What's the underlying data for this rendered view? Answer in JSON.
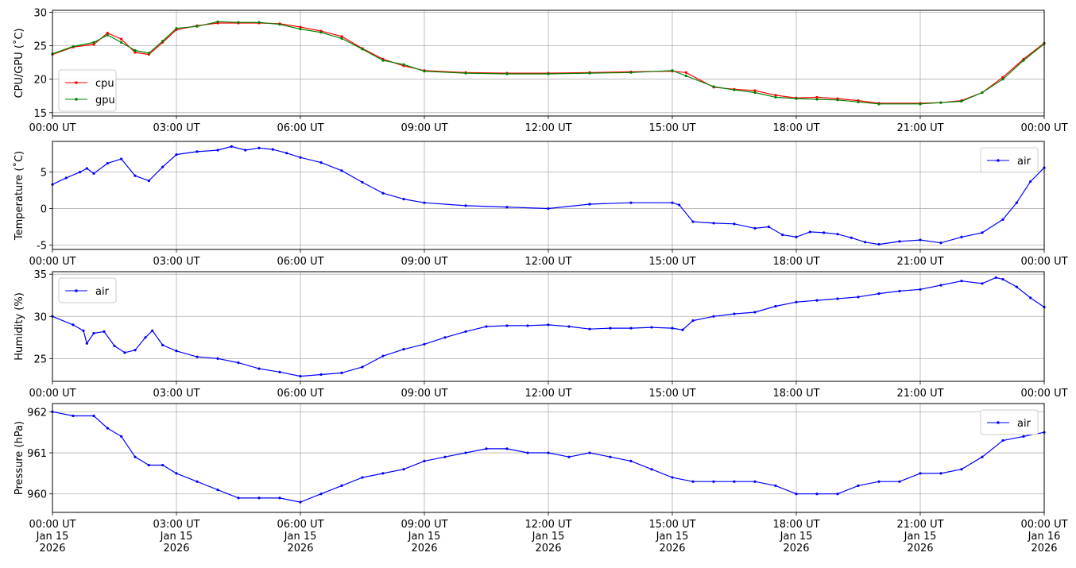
{
  "chart_data": [
    {
      "type": "line",
      "ylabel": "CPU/GPU (˚C)",
      "ylim": [
        14.5,
        30.3
      ],
      "yticks": [
        15,
        20,
        25,
        30
      ],
      "xlim": [
        "2026-01-15 00:00",
        "2026-01-16 00:00"
      ],
      "xtick_labels": [
        "00:00 UT",
        "03:00 UT",
        "06:00 UT",
        "09:00 UT",
        "12:00 UT",
        "15:00 UT",
        "18:00 UT",
        "21:00 UT",
        "00:00 UT"
      ],
      "grid": true,
      "legend": "lower-left",
      "series": [
        {
          "name": "cpu",
          "color": "#ff0000",
          "x": [
            "00:00",
            "00:30",
            "01:00",
            "01:20",
            "01:40",
            "02:00",
            "02:20",
            "02:40",
            "03:00",
            "03:30",
            "04:00",
            "04:30",
            "05:00",
            "05:30",
            "06:00",
            "06:30",
            "07:00",
            "07:30",
            "08:00",
            "08:30",
            "09:00",
            "10:00",
            "11:00",
            "12:00",
            "13:00",
            "14:00",
            "15:00",
            "15:20",
            "16:00",
            "16:30",
            "17:00",
            "17:30",
            "18:00",
            "18:30",
            "19:00",
            "19:30",
            "20:00",
            "21:00",
            "21:30",
            "22:00",
            "22:30",
            "23:00",
            "23:30",
            "24:00"
          ],
          "y": [
            23.7,
            24.8,
            25.2,
            26.9,
            26.0,
            24.0,
            23.7,
            25.5,
            27.4,
            28.0,
            28.4,
            28.4,
            28.4,
            28.3,
            27.8,
            27.2,
            26.4,
            24.6,
            23.0,
            22.0,
            21.3,
            21.0,
            20.9,
            20.9,
            21.0,
            21.1,
            21.2,
            21.0,
            18.8,
            18.5,
            18.3,
            17.6,
            17.2,
            17.3,
            17.1,
            16.8,
            16.4,
            16.4,
            16.5,
            16.8,
            18.0,
            20.3,
            23.0,
            25.4
          ]
        },
        {
          "name": "gpu",
          "color": "#008000",
          "x": [
            "00:00",
            "00:30",
            "01:00",
            "01:20",
            "01:40",
            "02:00",
            "02:20",
            "02:40",
            "03:00",
            "03:30",
            "04:00",
            "04:30",
            "05:00",
            "05:30",
            "06:00",
            "06:30",
            "07:00",
            "07:30",
            "08:00",
            "08:30",
            "09:00",
            "10:00",
            "11:00",
            "12:00",
            "13:00",
            "14:00",
            "15:00",
            "15:20",
            "16:00",
            "16:30",
            "17:00",
            "17:30",
            "18:00",
            "18:30",
            "19:00",
            "19:30",
            "20:00",
            "21:00",
            "21:30",
            "22:00",
            "22:30",
            "23:00",
            "23:30",
            "24:00"
          ],
          "y": [
            23.8,
            24.9,
            25.5,
            26.6,
            25.5,
            24.3,
            23.9,
            25.7,
            27.6,
            27.9,
            28.6,
            28.5,
            28.5,
            28.2,
            27.5,
            27.0,
            26.1,
            24.5,
            22.8,
            22.2,
            21.2,
            20.9,
            20.8,
            20.8,
            20.9,
            21.0,
            21.3,
            20.5,
            18.9,
            18.4,
            18.0,
            17.3,
            17.1,
            17.0,
            16.9,
            16.6,
            16.3,
            16.3,
            16.5,
            16.7,
            18.0,
            20.0,
            22.8,
            25.3
          ]
        }
      ]
    },
    {
      "type": "line",
      "ylabel": "Temperature (˚C)",
      "ylim": [
        -5.6,
        9.2
      ],
      "yticks": [
        -5,
        0,
        5
      ],
      "xlim": [
        "2026-01-15 00:00",
        "2026-01-16 00:00"
      ],
      "xtick_labels": [
        "00:00 UT",
        "03:00 UT",
        "06:00 UT",
        "09:00 UT",
        "12:00 UT",
        "15:00 UT",
        "18:00 UT",
        "21:00 UT",
        "00:00 UT"
      ],
      "grid": true,
      "legend": "upper-right",
      "series": [
        {
          "name": "air",
          "color": "#0000ff",
          "x": [
            "00:00",
            "00:20",
            "00:40",
            "00:50",
            "01:00",
            "01:20",
            "01:40",
            "02:00",
            "02:20",
            "02:40",
            "03:00",
            "03:30",
            "04:00",
            "04:20",
            "04:40",
            "05:00",
            "05:20",
            "05:40",
            "06:00",
            "06:30",
            "07:00",
            "07:30",
            "08:00",
            "08:30",
            "09:00",
            "10:00",
            "11:00",
            "12:00",
            "13:00",
            "14:00",
            "15:00",
            "15:10",
            "15:30",
            "16:00",
            "16:30",
            "17:00",
            "17:20",
            "17:40",
            "18:00",
            "18:20",
            "18:40",
            "19:00",
            "19:20",
            "19:40",
            "20:00",
            "20:30",
            "21:00",
            "21:30",
            "22:00",
            "22:30",
            "23:00",
            "23:20",
            "23:40",
            "24:00"
          ],
          "y": [
            3.3,
            4.2,
            5.0,
            5.5,
            4.8,
            6.2,
            6.8,
            4.5,
            3.8,
            5.7,
            7.4,
            7.8,
            8.0,
            8.5,
            8.0,
            8.3,
            8.1,
            7.6,
            7.0,
            6.3,
            5.2,
            3.6,
            2.1,
            1.3,
            0.8,
            0.4,
            0.2,
            0.0,
            0.6,
            0.8,
            0.8,
            0.5,
            -1.8,
            -2.0,
            -2.1,
            -2.7,
            -2.5,
            -3.6,
            -3.9,
            -3.2,
            -3.3,
            -3.5,
            -4.0,
            -4.6,
            -4.9,
            -4.5,
            -4.3,
            -4.7,
            -3.9,
            -3.3,
            -1.5,
            0.8,
            3.7,
            5.6
          ]
        }
      ]
    },
    {
      "type": "line",
      "ylabel": "Humidity (%)",
      "ylim": [
        22.3,
        35.3
      ],
      "yticks": [
        25,
        30,
        35
      ],
      "xlim": [
        "2026-01-15 00:00",
        "2026-01-16 00:00"
      ],
      "xtick_labels": [
        "00:00 UT",
        "03:00 UT",
        "06:00 UT",
        "09:00 UT",
        "12:00 UT",
        "15:00 UT",
        "18:00 UT",
        "21:00 UT",
        "00:00 UT"
      ],
      "grid": true,
      "legend": "upper-left",
      "series": [
        {
          "name": "air",
          "color": "#0000ff",
          "x": [
            "00:00",
            "00:30",
            "00:45",
            "00:50",
            "01:00",
            "01:15",
            "01:30",
            "01:45",
            "02:00",
            "02:15",
            "02:25",
            "02:40",
            "03:00",
            "03:30",
            "04:00",
            "04:30",
            "05:00",
            "05:30",
            "06:00",
            "06:30",
            "07:00",
            "07:30",
            "08:00",
            "08:30",
            "09:00",
            "09:30",
            "10:00",
            "10:30",
            "11:00",
            "11:30",
            "12:00",
            "12:30",
            "13:00",
            "13:30",
            "14:00",
            "14:30",
            "15:00",
            "15:15",
            "15:30",
            "16:00",
            "16:30",
            "17:00",
            "17:30",
            "18:00",
            "18:30",
            "19:00",
            "19:30",
            "20:00",
            "20:30",
            "21:00",
            "21:30",
            "22:00",
            "22:30",
            "22:50",
            "23:00",
            "23:20",
            "23:40",
            "24:00"
          ],
          "y": [
            30.0,
            29.0,
            28.3,
            26.8,
            28.0,
            28.2,
            26.5,
            25.7,
            26.0,
            27.5,
            28.3,
            26.6,
            25.9,
            25.2,
            25.0,
            24.5,
            23.8,
            23.4,
            22.9,
            23.1,
            23.3,
            24.0,
            25.3,
            26.1,
            26.7,
            27.5,
            28.2,
            28.8,
            28.9,
            28.9,
            29.0,
            28.8,
            28.5,
            28.6,
            28.6,
            28.7,
            28.6,
            28.4,
            29.5,
            30.0,
            30.3,
            30.5,
            31.2,
            31.7,
            31.9,
            32.1,
            32.3,
            32.7,
            33.0,
            33.2,
            33.7,
            34.2,
            33.9,
            34.6,
            34.4,
            33.5,
            32.2,
            31.1
          ]
        }
      ]
    },
    {
      "type": "line",
      "ylabel": "Pressure (hPa)",
      "ylim": [
        959.55,
        962.2
      ],
      "yticks": [
        960,
        961,
        962
      ],
      "ytick_labels": [
        "960",
        "961",
        "962"
      ],
      "xlim": [
        "2026-01-15 00:00",
        "2026-01-16 00:00"
      ],
      "xtick_labels": [
        "00:00 UT\nJan 15\n2026",
        "03:00 UT\nJan 15\n2026",
        "06:00 UT\nJan 15\n2026",
        "09:00 UT\nJan 15\n2026",
        "12:00 UT\nJan 15\n2026",
        "15:00 UT\nJan 15\n2026",
        "18:00 UT\nJan 15\n2026",
        "21:00 UT\nJan 15\n2026",
        "00:00 UT\nJan 16\n2026"
      ],
      "grid": true,
      "legend": "upper-right",
      "series": [
        {
          "name": "air",
          "color": "#0000ff",
          "x": [
            "00:00",
            "00:30",
            "01:00",
            "01:20",
            "01:40",
            "02:00",
            "02:20",
            "02:40",
            "03:00",
            "03:30",
            "04:00",
            "04:30",
            "05:00",
            "05:30",
            "06:00",
            "06:30",
            "07:00",
            "07:30",
            "08:00",
            "08:30",
            "09:00",
            "09:30",
            "10:00",
            "10:30",
            "11:00",
            "11:30",
            "12:00",
            "12:30",
            "13:00",
            "13:30",
            "14:00",
            "14:30",
            "15:00",
            "15:30",
            "16:00",
            "16:30",
            "17:00",
            "17:30",
            "18:00",
            "18:30",
            "19:00",
            "19:30",
            "20:00",
            "20:30",
            "21:00",
            "21:30",
            "22:00",
            "22:30",
            "23:00",
            "23:30",
            "24:00"
          ],
          "y": [
            962.0,
            961.9,
            961.9,
            961.6,
            961.4,
            960.9,
            960.7,
            960.7,
            960.5,
            960.3,
            960.1,
            959.9,
            959.9,
            959.9,
            959.8,
            960.0,
            960.2,
            960.4,
            960.5,
            960.6,
            960.8,
            960.9,
            961.0,
            961.1,
            961.1,
            961.0,
            961.0,
            960.9,
            961.0,
            960.9,
            960.8,
            960.6,
            960.4,
            960.3,
            960.3,
            960.3,
            960.3,
            960.2,
            960.0,
            960.0,
            960.0,
            960.2,
            960.3,
            960.3,
            960.5,
            960.5,
            960.6,
            960.9,
            961.3,
            961.4,
            961.5
          ]
        }
      ]
    }
  ]
}
